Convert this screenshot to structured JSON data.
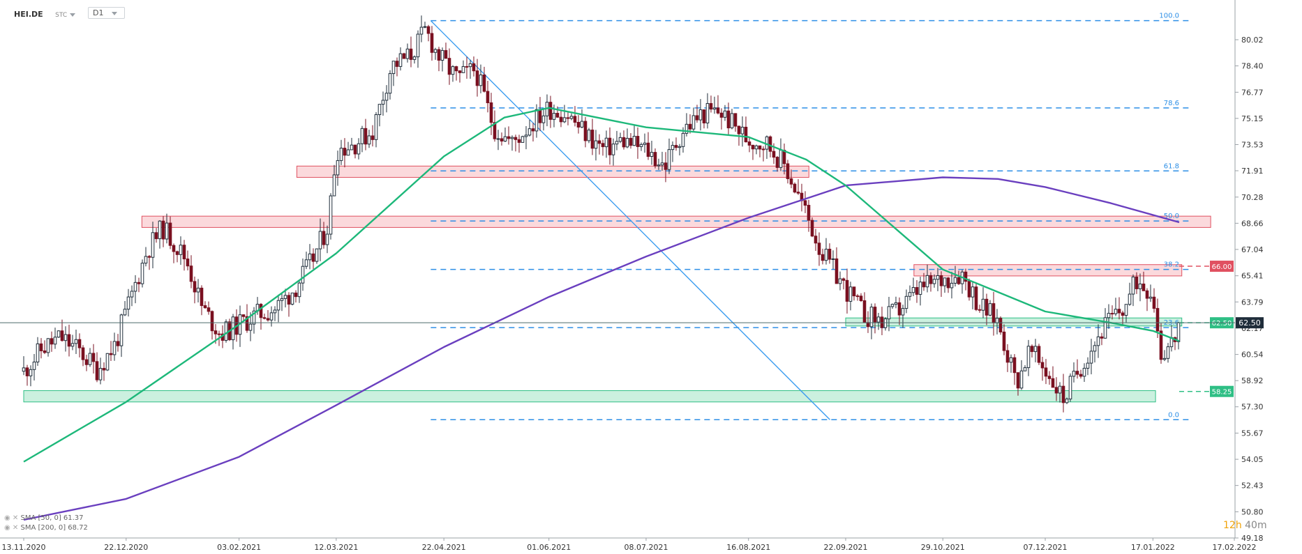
{
  "header": {
    "symbol": "HEI.DE",
    "asset_class": "STC",
    "timeframe": "D1"
  },
  "legend": [
    {
      "label": "SMA [50, 0] 61.37",
      "color": "#1db87a"
    },
    {
      "label": "SMA [200, 0] 68.72",
      "color": "#6a3fbf"
    }
  ],
  "timer": {
    "hours": "12h",
    "minutes": "40m"
  },
  "colors": {
    "up": "#1f2d3a",
    "down": "#7a1020",
    "sma50": "#1db87a",
    "sma200": "#6a3fbf",
    "fib": "#2d8fe6",
    "trend": "#3a9cf0",
    "resistance": "#e05060",
    "support": "#2fbf85",
    "current": "#1f2d3a"
  },
  "chart_data": {
    "type": "candlestick",
    "y_axis": {
      "range": [
        49.18,
        81.4
      ],
      "ticks": [
        80.02,
        78.4,
        76.77,
        75.15,
        73.53,
        71.91,
        70.28,
        68.66,
        67.04,
        65.41,
        63.79,
        62.17,
        60.54,
        58.92,
        57.3,
        55.67,
        54.05,
        52.43,
        50.8,
        49.18
      ]
    },
    "x_axis": {
      "ticks": [
        "13.11.2020",
        "22.12.2020",
        "03.02.2021",
        "12.03.2021",
        "22.04.2021",
        "01.06.2021",
        "08.07.2021",
        "16.08.2021",
        "22.09.2021",
        "29.10.2021",
        "07.12.2021",
        "17.01.2022",
        "17.02.2022"
      ]
    },
    "price_path": [
      [
        "13.11.2020",
        59.5
      ],
      [
        "20.11.2020",
        60.9
      ],
      [
        "27.11.2020",
        61.6
      ],
      [
        "04.12.2020",
        60.8
      ],
      [
        "11.12.2020",
        59.6
      ],
      [
        "18.12.2020",
        61.2
      ],
      [
        "22.12.2020",
        63.2
      ],
      [
        "30.12.2020",
        67.0
      ],
      [
        "05.01.2021",
        68.4
      ],
      [
        "14.01.2021",
        66.4
      ],
      [
        "20.01.2021",
        63.4
      ],
      [
        "27.01.2021",
        61.8
      ],
      [
        "03.02.2021",
        62.4
      ],
      [
        "10.02.2021",
        63.0
      ],
      [
        "17.02.2021",
        63.4
      ],
      [
        "24.02.2021",
        64.6
      ],
      [
        "03.03.2021",
        66.4
      ],
      [
        "09.03.2021",
        68.6
      ],
      [
        "12.03.2021",
        73.2
      ],
      [
        "19.03.2021",
        73.6
      ],
      [
        "26.03.2021",
        74.4
      ],
      [
        "02.04.2021",
        78.4
      ],
      [
        "09.04.2021",
        79.0
      ],
      [
        "15.04.2021",
        80.6
      ],
      [
        "20.04.2021",
        79.0
      ],
      [
        "27.04.2021",
        77.6
      ],
      [
        "04.05.2021",
        78.2
      ],
      [
        "11.05.2021",
        74.6
      ],
      [
        "18.05.2021",
        73.6
      ],
      [
        "25.05.2021",
        74.8
      ],
      [
        "01.06.2021",
        75.8
      ],
      [
        "08.06.2021",
        75.4
      ],
      [
        "15.06.2021",
        74.2
      ],
      [
        "22.06.2021",
        73.2
      ],
      [
        "29.06.2021",
        73.8
      ],
      [
        "08.07.2021",
        73.2
      ],
      [
        "15.07.2021",
        72.2
      ],
      [
        "22.07.2021",
        74.4
      ],
      [
        "29.07.2021",
        75.4
      ],
      [
        "05.08.2021",
        75.6
      ],
      [
        "16.08.2021",
        73.8
      ],
      [
        "23.08.2021",
        73.6
      ],
      [
        "30.08.2021",
        72.2
      ],
      [
        "06.09.2021",
        69.6
      ],
      [
        "13.09.2021",
        66.8
      ],
      [
        "22.09.2021",
        64.6
      ],
      [
        "29.09.2021",
        63.0
      ],
      [
        "06.10.2021",
        62.6
      ],
      [
        "13.10.2021",
        63.4
      ],
      [
        "20.10.2021",
        64.6
      ],
      [
        "29.10.2021",
        65.2
      ],
      [
        "05.11.2021",
        65.6
      ],
      [
        "12.11.2021",
        63.6
      ],
      [
        "19.11.2021",
        62.6
      ],
      [
        "26.11.2021",
        58.8
      ],
      [
        "01.12.2021",
        60.8
      ],
      [
        "07.12.2021",
        59.6
      ],
      [
        "14.12.2021",
        57.8
      ],
      [
        "21.12.2021",
        60.0
      ],
      [
        "30.12.2021",
        62.4
      ],
      [
        "06.01.2022",
        63.4
      ],
      [
        "11.01.2022",
        65.2
      ],
      [
        "17.01.2022",
        64.4
      ],
      [
        "20.01.2022",
        60.6
      ],
      [
        "25.01.2022",
        61.4
      ],
      [
        "27.01.2022",
        62.5
      ]
    ],
    "sma50": [
      [
        "13.11.2020",
        53.9
      ],
      [
        "22.12.2020",
        57.6
      ],
      [
        "03.02.2021",
        62.4
      ],
      [
        "12.03.2021",
        66.8
      ],
      [
        "22.04.2021",
        72.8
      ],
      [
        "15.05.2021",
        75.2
      ],
      [
        "01.06.2021",
        75.8
      ],
      [
        "08.07.2021",
        74.6
      ],
      [
        "16.08.2021",
        74.0
      ],
      [
        "07.09.2021",
        72.6
      ],
      [
        "22.09.2021",
        71.0
      ],
      [
        "29.10.2021",
        65.8
      ],
      [
        "19.11.2021",
        64.4
      ],
      [
        "07.12.2021",
        63.2
      ],
      [
        "01.01.2022",
        62.5
      ],
      [
        "17.01.2022",
        62.0
      ],
      [
        "27.01.2022",
        61.37
      ]
    ],
    "sma200": [
      [
        "13.11.2020",
        50.3
      ],
      [
        "22.12.2020",
        51.6
      ],
      [
        "03.02.2021",
        54.2
      ],
      [
        "12.03.2021",
        57.4
      ],
      [
        "22.04.2021",
        61.0
      ],
      [
        "01.06.2021",
        64.1
      ],
      [
        "08.07.2021",
        66.6
      ],
      [
        "16.08.2021",
        69.0
      ],
      [
        "22.09.2021",
        71.0
      ],
      [
        "29.10.2021",
        71.5
      ],
      [
        "19.11.2021",
        71.4
      ],
      [
        "07.12.2021",
        70.9
      ],
      [
        "01.01.2022",
        69.9
      ],
      [
        "27.01.2022",
        68.72
      ]
    ],
    "fibonacci": [
      {
        "label": "100.0",
        "value": 81.2
      },
      {
        "label": "78.6",
        "value": 75.8
      },
      {
        "label": "61.8",
        "value": 71.9
      },
      {
        "label": "50.0",
        "value": 68.8
      },
      {
        "label": "38.2",
        "value": 65.8
      },
      {
        "label": "23.6",
        "value": 62.2
      },
      {
        "label": "0.0",
        "value": 56.5
      }
    ],
    "trendline": {
      "from": [
        "17.04.2021",
        81.2
      ],
      "to": [
        "16.09.2021",
        56.5
      ]
    },
    "zones": [
      {
        "kind": "resistance",
        "from": "25.02.2021",
        "to": "08.09.2021",
        "top": 72.2,
        "bottom": 71.5
      },
      {
        "kind": "resistance",
        "from": "28.12.2020",
        "to": "08.02.2022",
        "top": 69.1,
        "bottom": 68.4
      },
      {
        "kind": "resistance",
        "from": "18.10.2021",
        "to": "28.01.2022",
        "top": 66.1,
        "bottom": 65.4
      },
      {
        "kind": "support",
        "from": "22.09.2021",
        "to": "28.01.2022",
        "top": 62.8,
        "bottom": 62.3
      },
      {
        "kind": "support",
        "from": "13.11.2020",
        "to": "18.01.2022",
        "top": 58.3,
        "bottom": 57.6
      }
    ],
    "levels": [
      {
        "value": 66.0,
        "label": "66.00",
        "kind": "resistance"
      },
      {
        "value": 62.5,
        "label": "62.50",
        "kind": "support"
      },
      {
        "value": 58.25,
        "label": "58.25",
        "kind": "support"
      }
    ],
    "current_price": {
      "value": 62.5,
      "label": "62.50"
    }
  }
}
